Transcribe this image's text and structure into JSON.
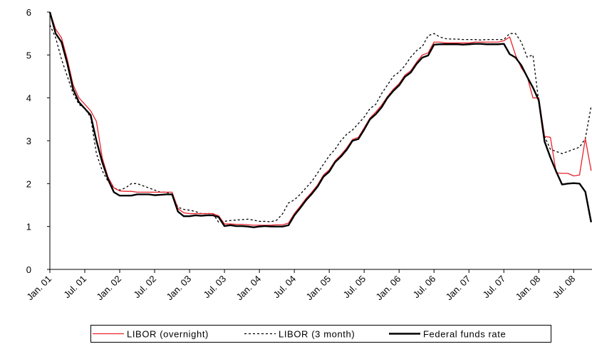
{
  "chart_data": {
    "type": "line",
    "categories": [
      "Jan. 01",
      null,
      null,
      null,
      null,
      null,
      "Jul. 01",
      null,
      null,
      null,
      null,
      null,
      "Jan. 02",
      null,
      null,
      null,
      null,
      null,
      "Jul. 02",
      null,
      null,
      null,
      null,
      null,
      "Jan. 03",
      null,
      null,
      null,
      null,
      null,
      "Jul. 03",
      null,
      null,
      null,
      null,
      null,
      "Jan. 04",
      null,
      null,
      null,
      null,
      null,
      "Jul. 04",
      null,
      null,
      null,
      null,
      null,
      "Jan. 05",
      null,
      null,
      null,
      null,
      null,
      "Jul. 05",
      null,
      null,
      null,
      null,
      null,
      "Jan. 06",
      null,
      null,
      null,
      null,
      null,
      "Jul. 06",
      null,
      null,
      null,
      null,
      null,
      "Jan. 07",
      null,
      null,
      null,
      null,
      null,
      "Jul. 07",
      null,
      null,
      null,
      null,
      null,
      "Jan. 08",
      null,
      null,
      null,
      null,
      null,
      "Jul. 08",
      null,
      null,
      null
    ],
    "series": [
      {
        "name": "LIBOR (overnight)",
        "color": "#e8232a",
        "style": "solid",
        "values": [
          6.0,
          5.6,
          5.4,
          4.9,
          4.3,
          4.0,
          3.85,
          3.7,
          3.45,
          2.6,
          2.15,
          1.9,
          1.83,
          1.82,
          1.82,
          1.8,
          1.8,
          1.8,
          1.8,
          1.8,
          1.8,
          1.8,
          1.42,
          1.32,
          1.3,
          1.3,
          1.3,
          1.3,
          1.3,
          1.25,
          1.06,
          1.06,
          1.05,
          1.05,
          1.04,
          1.03,
          1.03,
          1.03,
          1.03,
          1.04,
          1.04,
          1.08,
          1.3,
          1.47,
          1.65,
          1.8,
          1.97,
          2.2,
          2.32,
          2.53,
          2.67,
          2.83,
          3.03,
          3.08,
          3.3,
          3.53,
          3.67,
          3.83,
          4.03,
          4.2,
          4.33,
          4.53,
          4.63,
          4.83,
          5.0,
          5.05,
          5.3,
          5.3,
          5.28,
          5.28,
          5.28,
          5.28,
          5.28,
          5.3,
          5.3,
          5.3,
          5.3,
          5.3,
          5.33,
          5.42,
          5.0,
          4.7,
          4.5,
          4.0,
          4.0,
          3.1,
          3.08,
          2.25,
          2.24,
          2.24,
          2.18,
          2.2,
          3.05,
          2.3
        ]
      },
      {
        "name": "LIBOR (3 month)",
        "color": "#000000",
        "style": "dotted",
        "values": [
          5.7,
          5.4,
          4.9,
          4.5,
          4.1,
          3.85,
          3.75,
          3.55,
          2.7,
          2.3,
          2.05,
          1.9,
          1.85,
          1.9,
          2.0,
          2.0,
          1.95,
          1.9,
          1.85,
          1.8,
          1.8,
          1.75,
          1.45,
          1.4,
          1.38,
          1.35,
          1.3,
          1.3,
          1.3,
          1.1,
          1.12,
          1.14,
          1.15,
          1.16,
          1.17,
          1.15,
          1.12,
          1.12,
          1.11,
          1.15,
          1.3,
          1.55,
          1.62,
          1.75,
          1.9,
          2.05,
          2.25,
          2.45,
          2.65,
          2.8,
          3.0,
          3.15,
          3.25,
          3.4,
          3.55,
          3.75,
          3.85,
          4.1,
          4.3,
          4.5,
          4.6,
          4.75,
          4.95,
          5.1,
          5.2,
          5.45,
          5.5,
          5.42,
          5.38,
          5.37,
          5.37,
          5.36,
          5.36,
          5.36,
          5.35,
          5.36,
          5.36,
          5.36,
          5.36,
          5.5,
          5.5,
          5.3,
          4.95,
          5.0,
          3.9,
          3.1,
          2.8,
          2.75,
          2.7,
          2.75,
          2.8,
          2.85,
          3.05,
          3.8
        ]
      },
      {
        "name": "Federal funds rate",
        "color": "#000000",
        "style": "thick",
        "values": [
          6.0,
          5.5,
          5.3,
          4.8,
          4.2,
          3.9,
          3.75,
          3.6,
          3.0,
          2.5,
          2.1,
          1.8,
          1.72,
          1.72,
          1.72,
          1.75,
          1.75,
          1.75,
          1.73,
          1.74,
          1.75,
          1.75,
          1.35,
          1.24,
          1.24,
          1.26,
          1.25,
          1.26,
          1.26,
          1.22,
          1.01,
          1.03,
          1.01,
          1.01,
          1.0,
          0.98,
          1.0,
          1.01,
          1.0,
          1.0,
          1.0,
          1.03,
          1.26,
          1.43,
          1.61,
          1.76,
          1.93,
          2.16,
          2.28,
          2.5,
          2.63,
          2.79,
          3.0,
          3.04,
          3.26,
          3.5,
          3.62,
          3.78,
          4.0,
          4.16,
          4.29,
          4.49,
          4.59,
          4.79,
          4.94,
          4.99,
          5.24,
          5.25,
          5.25,
          5.25,
          5.25,
          5.24,
          5.25,
          5.26,
          5.26,
          5.25,
          5.25,
          5.25,
          5.26,
          5.02,
          4.94,
          4.76,
          4.49,
          4.24,
          3.94,
          2.98,
          2.61,
          2.28,
          1.98,
          2.0,
          2.01,
          2.0,
          1.81,
          1.1
        ]
      }
    ],
    "ylim": [
      0,
      6
    ],
    "yticks": [
      0,
      1,
      2,
      3,
      4,
      5,
      6
    ],
    "grid": false,
    "legend": "bottom"
  }
}
